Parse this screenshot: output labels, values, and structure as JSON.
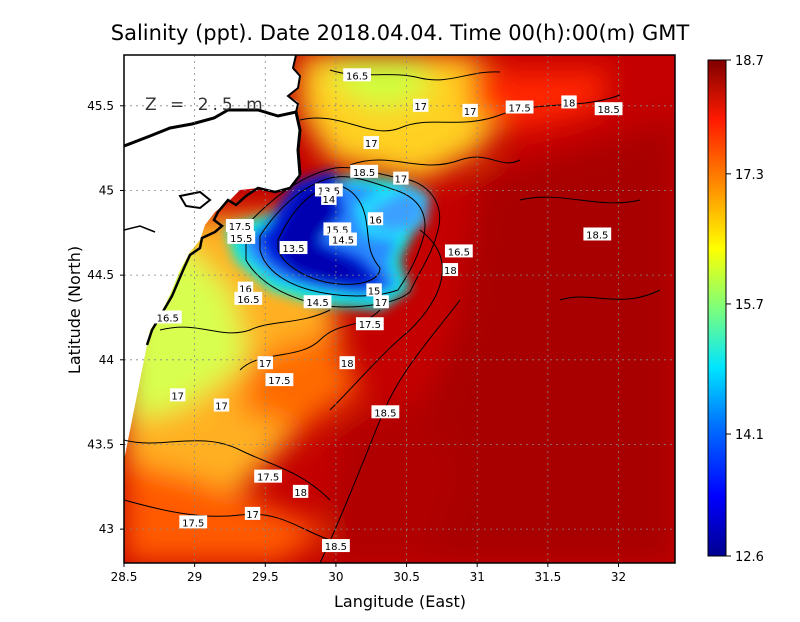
{
  "chart_data": {
    "type": "heatmap",
    "title": "Salinity (ppt). Date 2018.04.04. Time 00(h):00(m) GMT",
    "xlabel": "Langitude (East)",
    "ylabel": "Latitude (North)",
    "xlim": [
      28.5,
      32.4
    ],
    "ylim": [
      42.8,
      45.8
    ],
    "x_ticks": [
      "28.5",
      "29",
      "29.5",
      "30",
      "30.5",
      "31",
      "31.5",
      "32"
    ],
    "x_tick_values": [
      28.5,
      29,
      29.5,
      30,
      30.5,
      31,
      31.5,
      32
    ],
    "y_ticks": [
      "43",
      "43.5",
      "44",
      "44.5",
      "45",
      "45.5"
    ],
    "y_tick_values": [
      43,
      43.5,
      44,
      44.5,
      45,
      45.5
    ],
    "grid": true,
    "depth_annotation": "Z = 2.5 m",
    "colorbar": {
      "min": 12.6,
      "max": 18.7,
      "tick_labels": [
        "18.7",
        "17.3",
        "15.7",
        "14.1",
        "12.6"
      ],
      "tick_values": [
        18.7,
        17.3,
        15.7,
        14.1,
        12.6
      ]
    },
    "contour_labels": [
      {
        "text": "16.5",
        "lon": 30.15,
        "lat": 45.68
      },
      {
        "text": "17",
        "lon": 30.6,
        "lat": 45.5
      },
      {
        "text": "17",
        "lon": 30.95,
        "lat": 45.47
      },
      {
        "text": "17.5",
        "lon": 31.3,
        "lat": 45.49
      },
      {
        "text": "18",
        "lon": 31.65,
        "lat": 45.52
      },
      {
        "text": "18.5",
        "lon": 31.93,
        "lat": 45.48
      },
      {
        "text": "17",
        "lon": 30.25,
        "lat": 45.28
      },
      {
        "text": "18.5",
        "lon": 30.2,
        "lat": 45.11
      },
      {
        "text": "17",
        "lon": 30.46,
        "lat": 45.07
      },
      {
        "text": "13.5",
        "lon": 29.95,
        "lat": 45.0
      },
      {
        "text": "14",
        "lon": 29.95,
        "lat": 44.95
      },
      {
        "text": "16",
        "lon": 30.28,
        "lat": 44.83
      },
      {
        "text": "17.5",
        "lon": 29.32,
        "lat": 44.79
      },
      {
        "text": "15.5",
        "lon": 29.33,
        "lat": 44.72
      },
      {
        "text": "15.5",
        "lon": 30.01,
        "lat": 44.77
      },
      {
        "text": "14.5",
        "lon": 30.05,
        "lat": 44.71
      },
      {
        "text": "13.5",
        "lon": 29.7,
        "lat": 44.66
      },
      {
        "text": "16.5",
        "lon": 30.87,
        "lat": 44.64
      },
      {
        "text": "18",
        "lon": 30.81,
        "lat": 44.53
      },
      {
        "text": "18.5",
        "lon": 31.85,
        "lat": 44.74
      },
      {
        "text": "16",
        "lon": 29.36,
        "lat": 44.42
      },
      {
        "text": "16.5",
        "lon": 29.38,
        "lat": 44.36
      },
      {
        "text": "14.5",
        "lon": 29.87,
        "lat": 44.34
      },
      {
        "text": "15",
        "lon": 30.27,
        "lat": 44.41
      },
      {
        "text": "17",
        "lon": 30.32,
        "lat": 44.34
      },
      {
        "text": "16.5",
        "lon": 28.81,
        "lat": 44.25
      },
      {
        "text": "17.5",
        "lon": 30.24,
        "lat": 44.21
      },
      {
        "text": "17",
        "lon": 29.5,
        "lat": 43.98
      },
      {
        "text": "18",
        "lon": 30.08,
        "lat": 43.98
      },
      {
        "text": "17.5",
        "lon": 29.6,
        "lat": 43.88
      },
      {
        "text": "17",
        "lon": 28.88,
        "lat": 43.79
      },
      {
        "text": "17",
        "lon": 29.19,
        "lat": 43.73
      },
      {
        "text": "18.5",
        "lon": 30.35,
        "lat": 43.69
      },
      {
        "text": "17.5",
        "lon": 29.52,
        "lat": 43.31
      },
      {
        "text": "18",
        "lon": 29.75,
        "lat": 43.22
      },
      {
        "text": "17",
        "lon": 29.41,
        "lat": 43.09
      },
      {
        "text": "17.5",
        "lon": 28.99,
        "lat": 43.04
      },
      {
        "text": "18.5",
        "lon": 30.0,
        "lat": 42.9
      }
    ]
  }
}
